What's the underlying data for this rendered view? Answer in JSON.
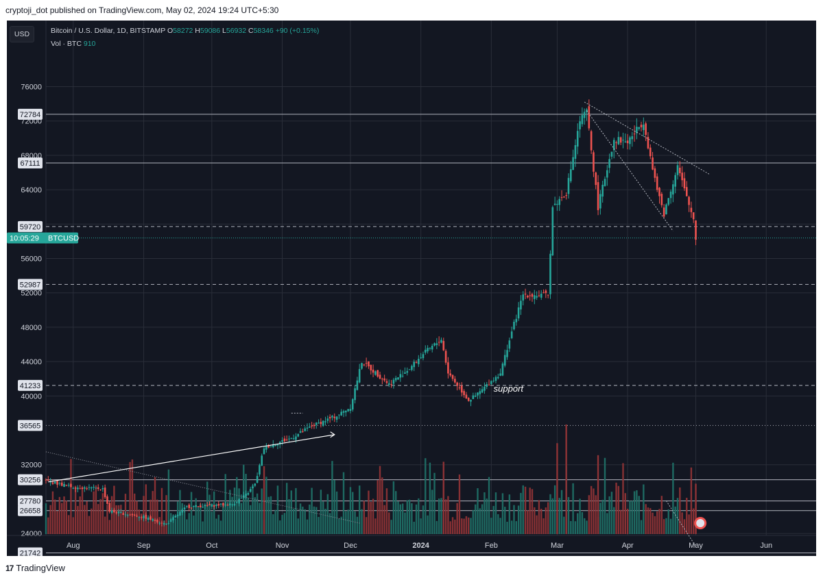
{
  "publish_line": "cryptoji_dot published on TradingView.com, May 02, 2024 19:24 UTC+5:30",
  "header": {
    "symbol": "Bitcoin / U.S. Dollar, 1D, BITSTAMP",
    "o_label": "O",
    "o_value": "58272",
    "h_label": "H",
    "h_value": "59086",
    "l_label": "L",
    "l_value": "56932",
    "c_label": "C",
    "c_value": "58346",
    "change": "+90 (+0.15%)",
    "vol_label": "Vol · BTC",
    "vol_value": "910"
  },
  "currency_button": "USD",
  "footer": {
    "brand": "TradingView",
    "logo_glyph": "17"
  },
  "annotation": "support",
  "current_price": {
    "timer": "10:05:29",
    "ticker": "BTCUSD",
    "price": 58346
  },
  "colors": {
    "up": "#26a69a",
    "down": "#ef5350",
    "background": "#131722",
    "grid": "#2a2e39",
    "text": "#d1d4dc"
  },
  "chart_data": {
    "type": "candlestick",
    "y_axis_ticks": [
      24000,
      32000,
      40000,
      44000,
      48000,
      52000,
      56000,
      60000,
      64000,
      68000,
      72000,
      76000
    ],
    "y_axis_range": [
      19844,
      77500
    ],
    "x_axis_labels": [
      "Aug",
      "Sep",
      "Oct",
      "Nov",
      "Dec",
      "2024",
      "Feb",
      "Mar",
      "Apr",
      "May",
      "Jun"
    ],
    "price_levels": [
      {
        "value": 72784,
        "style": "solid"
      },
      {
        "value": 67111,
        "style": "solid"
      },
      {
        "value": 59720,
        "style": "dashed"
      },
      {
        "value": 52987,
        "style": "dashed"
      },
      {
        "value": 41233,
        "style": "dashed"
      },
      {
        "value": 36565,
        "style": "dotted"
      },
      {
        "value": 30256,
        "style": "solid"
      },
      {
        "value": 27780,
        "style": "solid"
      },
      {
        "value": 26658,
        "style": "solid"
      },
      {
        "value": 21742,
        "style": "solid"
      },
      {
        "value": 19844,
        "style": "none"
      }
    ],
    "price_path": [
      {
        "date": "2023-07-20",
        "price": 30100
      },
      {
        "date": "2023-08-01",
        "price": 29400
      },
      {
        "date": "2023-08-14",
        "price": 29200
      },
      {
        "date": "2023-08-17",
        "price": 26600
      },
      {
        "date": "2023-09-01",
        "price": 25900
      },
      {
        "date": "2023-09-11",
        "price": 25100
      },
      {
        "date": "2023-09-20",
        "price": 27100
      },
      {
        "date": "2023-10-10",
        "price": 27400
      },
      {
        "date": "2023-10-16",
        "price": 28500
      },
      {
        "date": "2023-10-20",
        "price": 29700
      },
      {
        "date": "2023-10-24",
        "price": 34000
      },
      {
        "date": "2023-11-05",
        "price": 35100
      },
      {
        "date": "2023-11-14",
        "price": 36500
      },
      {
        "date": "2023-11-25",
        "price": 37700
      },
      {
        "date": "2023-12-01",
        "price": 38700
      },
      {
        "date": "2023-12-06",
        "price": 44000
      },
      {
        "date": "2023-12-18",
        "price": 41400
      },
      {
        "date": "2023-12-27",
        "price": 43200
      },
      {
        "date": "2024-01-02",
        "price": 44900
      },
      {
        "date": "2024-01-10",
        "price": 46600
      },
      {
        "date": "2024-01-13",
        "price": 42700
      },
      {
        "date": "2024-01-22",
        "price": 39500
      },
      {
        "date": "2024-01-25",
        "price": 40000
      },
      {
        "date": "2024-02-05",
        "price": 42700
      },
      {
        "date": "2024-02-10",
        "price": 47500
      },
      {
        "date": "2024-02-15",
        "price": 51800
      },
      {
        "date": "2024-02-26",
        "price": 51700
      },
      {
        "date": "2024-02-28",
        "price": 62000
      },
      {
        "date": "2024-03-05",
        "price": 63700
      },
      {
        "date": "2024-03-11",
        "price": 72000
      },
      {
        "date": "2024-03-14",
        "price": 73100
      },
      {
        "date": "2024-03-19",
        "price": 62000
      },
      {
        "date": "2024-03-26",
        "price": 69900
      },
      {
        "date": "2024-04-01",
        "price": 69600
      },
      {
        "date": "2024-04-08",
        "price": 72000
      },
      {
        "date": "2024-04-13",
        "price": 65000
      },
      {
        "date": "2024-04-17",
        "price": 61200
      },
      {
        "date": "2024-04-23",
        "price": 66800
      },
      {
        "date": "2024-04-27",
        "price": 63000
      },
      {
        "date": "2024-04-30",
        "price": 60600
      },
      {
        "date": "2024-05-01",
        "price": 58346
      }
    ],
    "volume_spikes": [
      {
        "date": "2024-03-05",
        "volume": 1.0
      },
      {
        "date": "2024-03-01",
        "volume": 0.83
      },
      {
        "date": "2024-03-19",
        "volume": 0.72
      },
      {
        "date": "2024-01-11",
        "volume": 0.66
      },
      {
        "date": "2023-10-24",
        "volume": 0.62
      },
      {
        "date": "2024-05-01",
        "volume": 0.46
      }
    ]
  }
}
